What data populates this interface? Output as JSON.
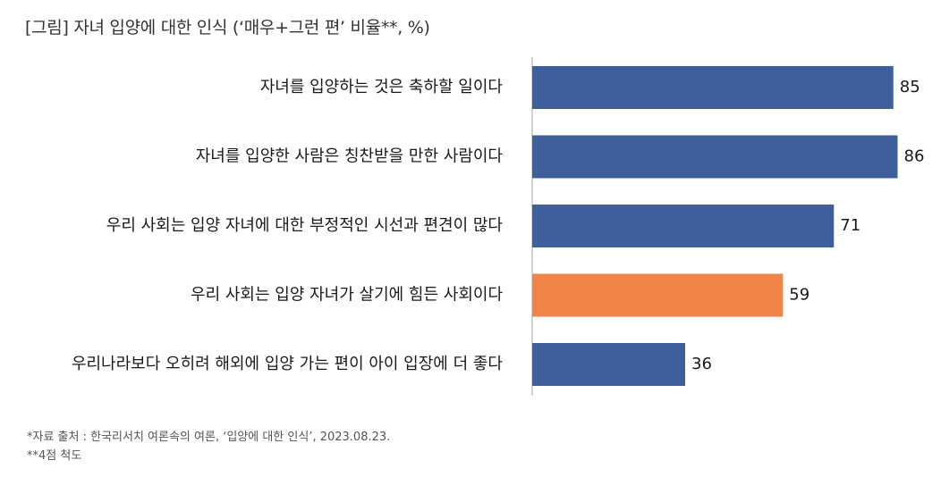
{
  "title": "[그림] 자녀 입양에 대한 인식 (‘매우+그런 편’ 비율**, %)",
  "footnotes": [
    "*자료 출처 : 한국리서치 여론속의 여론, ‘입양에 대한 인식’, 2023.08.23.",
    "**4점 척도"
  ],
  "colors": {
    "primary": "#3f5f9c",
    "highlight": "#f08446",
    "axis": "#b5b5b5"
  },
  "chart_data": {
    "type": "bar",
    "orientation": "horizontal",
    "categories": [
      "자녀를 입양하는 것은 축하할 일이다",
      "자녀를 입양한 사람은 칭찬받을 만한 사람이다",
      "우리 사회는 입양 자녀에 대한 부정적인 시선과 편견이 많다",
      "우리 사회는 입양 자녀가 살기에 힘든 사회이다",
      "우리나라보다 오히려 해외에 입양 가는 편이 아이 입장에 더 좋다"
    ],
    "values": [
      85,
      86,
      71,
      59,
      36
    ],
    "highlight_index": 3,
    "xlim": [
      0,
      100
    ],
    "grid": false,
    "legend": "none"
  }
}
